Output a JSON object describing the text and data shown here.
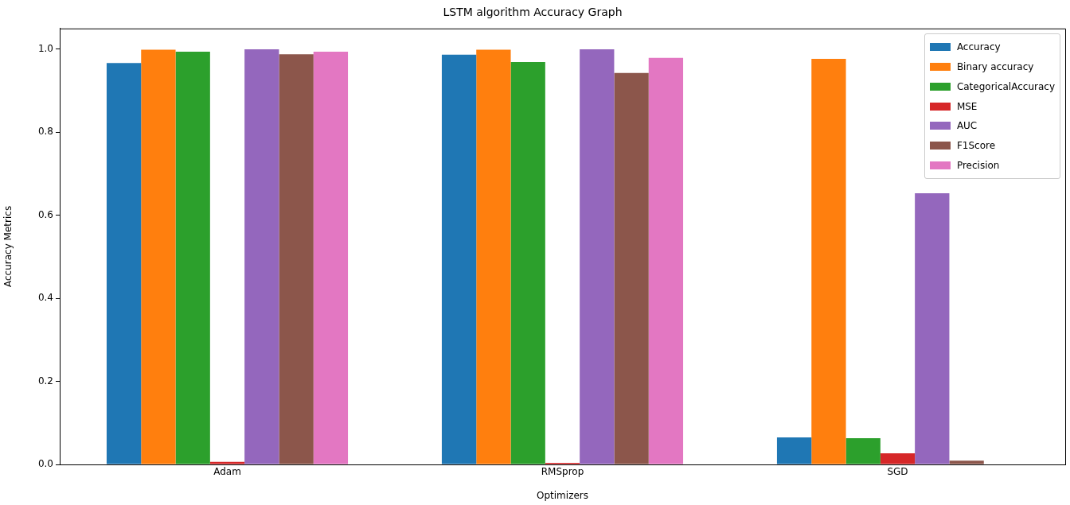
{
  "chart_data": {
    "type": "bar",
    "title": "LSTM algorithm Accuracy Graph",
    "xlabel": "Optimizers",
    "ylabel": "Accuracy Metrics",
    "categories": [
      "Adam",
      "RMSprop",
      "SGD"
    ],
    "series": [
      {
        "name": "Accuracy",
        "color": "#1f77b4",
        "values": [
          0.967,
          0.987,
          0.065
        ]
      },
      {
        "name": "Binary accuracy",
        "color": "#ff7f0e",
        "values": [
          0.999,
          0.999,
          0.977
        ]
      },
      {
        "name": "CategoricalAccuracy",
        "color": "#2ca02c",
        "values": [
          0.994,
          0.969,
          0.063
        ]
      },
      {
        "name": "MSE",
        "color": "#d62728",
        "values": [
          0.006,
          0.004,
          0.027
        ]
      },
      {
        "name": "AUC",
        "color": "#9467bd",
        "values": [
          1.0,
          1.0,
          0.653
        ]
      },
      {
        "name": "F1Score",
        "color": "#8c564b",
        "values": [
          0.988,
          0.943,
          0.009
        ]
      },
      {
        "name": "Precision",
        "color": "#e377c2",
        "values": [
          0.994,
          0.979,
          0
        ]
      }
    ],
    "ylim": [
      0,
      1.05
    ],
    "yticks": [
      {
        "value": 0,
        "label": "0.0"
      },
      {
        "value": 0.2,
        "label": "0.2"
      },
      {
        "value": 0.4,
        "label": "0.4"
      },
      {
        "value": 0.6,
        "label": "0.6"
      },
      {
        "value": 0.8,
        "label": "0.8"
      },
      {
        "value": 1.0,
        "label": "1.0"
      }
    ],
    "grid": false,
    "legend": "top right"
  }
}
